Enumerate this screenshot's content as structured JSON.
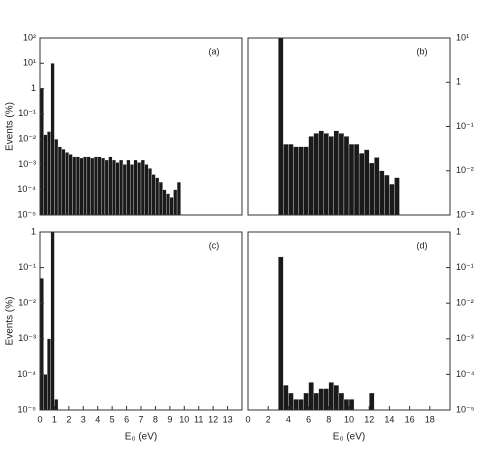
{
  "chart_data": [
    {
      "type": "histogram",
      "label": "(a)",
      "ylabel": "Events (%)",
      "color": "#1a1a1a",
      "log_y": true,
      "xlim": [
        0,
        14
      ],
      "ylim": [
        1e-05,
        100
      ],
      "yticks": [
        {
          "value": 100,
          "label": "10²"
        },
        {
          "value": 10,
          "label": "10¹"
        },
        1,
        {
          "value": 0.1,
          "label": "10⁻¹"
        },
        {
          "value": 0.01,
          "label": "10⁻²"
        },
        {
          "value": 0.001,
          "label": "10⁻³"
        },
        {
          "value": 0.0001,
          "label": "10⁻⁴"
        },
        {
          "value": 1e-05,
          "label": "10⁻⁵"
        }
      ],
      "bins": [
        0,
        0.25,
        0.5,
        0.75,
        1,
        1.25,
        1.5,
        1.75,
        2,
        2.25,
        2.5,
        2.75,
        3,
        3.25,
        3.5,
        3.75,
        4,
        4.25,
        4.5,
        4.75,
        5,
        5.25,
        5.5,
        5.75,
        6,
        6.25,
        6.5,
        6.75,
        7,
        7.25,
        7.5,
        7.75,
        8,
        8.25,
        8.5,
        8.75,
        9,
        9.25,
        9.5,
        9.75
      ],
      "values": [
        1,
        0.015,
        0.02,
        10,
        0.01,
        0.005,
        0.004,
        0.003,
        0.0025,
        0.002,
        0.002,
        0.0018,
        0.002,
        0.002,
        0.0018,
        0.002,
        0.002,
        0.0018,
        0.0015,
        0.002,
        0.0015,
        0.0012,
        0.0015,
        0.001,
        0.0015,
        0.001,
        0.0015,
        0.0012,
        0.0015,
        0.001,
        0.0007,
        0.0004,
        0.0003,
        0.0002,
        0.0001,
        7e-05,
        5e-05,
        0.0001,
        0.0002
      ]
    },
    {
      "type": "histogram",
      "label": "(b)",
      "color": "#1a1a1a",
      "log_y": true,
      "xlim": [
        0,
        20
      ],
      "ylim": [
        0.001,
        10
      ],
      "yticks": [
        {
          "value": 10,
          "label": "10¹"
        },
        1,
        {
          "value": 0.1,
          "label": "10⁻¹"
        },
        {
          "value": 0.01,
          "label": "10⁻²"
        },
        {
          "value": 0.001,
          "label": "10⁻³"
        }
      ],
      "bins": [
        3,
        3.5,
        4,
        4.5,
        5,
        5.5,
        6,
        6.5,
        7,
        7.5,
        8,
        8.5,
        9,
        9.5,
        10,
        10.5,
        11,
        11.5,
        12,
        12.5,
        13,
        13.5,
        14,
        14.5,
        15
      ],
      "values": [
        10,
        0.04,
        0.04,
        0.035,
        0.035,
        0.035,
        0.06,
        0.07,
        0.08,
        0.07,
        0.06,
        0.08,
        0.07,
        0.06,
        0.04,
        0.04,
        0.025,
        0.03,
        0.015,
        0.02,
        0.01,
        0.008,
        0.005,
        0.007
      ]
    },
    {
      "type": "histogram",
      "label": "(c)",
      "ylabel": "Events (%)",
      "xlabel": "E₀ (eV)",
      "color": "#1a1a1a",
      "log_y": true,
      "xlim": [
        0,
        14
      ],
      "ylim": [
        1e-05,
        1
      ],
      "xticks": [
        0,
        1,
        2,
        3,
        4,
        5,
        6,
        7,
        8,
        9,
        10,
        11,
        12,
        13
      ],
      "yticks": [
        1,
        {
          "value": 0.1,
          "label": "10⁻¹"
        },
        {
          "value": 0.01,
          "label": "10⁻²"
        },
        {
          "value": 0.001,
          "label": "10⁻³"
        },
        {
          "value": 0.0001,
          "label": "10⁻⁴"
        },
        {
          "value": 1e-05,
          "label": "10⁻⁵"
        }
      ],
      "bins": [
        0,
        0.25,
        0.5,
        0.75,
        1,
        1.25
      ],
      "values": [
        0.05,
        0.0001,
        0.001,
        1,
        2e-05
      ]
    },
    {
      "type": "histogram",
      "label": "(d)",
      "xlabel": "E₀ (eV)",
      "color": "#1a1a1a",
      "log_y": true,
      "xlim": [
        0,
        20
      ],
      "ylim": [
        1e-05,
        1
      ],
      "xticks": [
        0,
        2,
        4,
        6,
        8,
        10,
        12,
        14,
        16,
        18
      ],
      "yticks": [
        1,
        {
          "value": 0.1,
          "label": "10⁻¹"
        },
        {
          "value": 0.01,
          "label": "10⁻²"
        },
        {
          "value": 0.001,
          "label": "10⁻³"
        },
        {
          "value": 0.0001,
          "label": "10⁻⁴"
        },
        {
          "value": 1e-05,
          "label": "10⁻⁵"
        }
      ],
      "bins": [
        3,
        3.5,
        4,
        4.5,
        5,
        5.5,
        6,
        6.5,
        7,
        7.5,
        8,
        8.5,
        9,
        9.5,
        10,
        10.5,
        11,
        11.5,
        12,
        12.5
      ],
      "values": [
        0.2,
        5e-05,
        3e-05,
        2e-05,
        2e-05,
        3e-05,
        6e-05,
        3e-05,
        4e-05,
        4e-05,
        6e-05,
        5e-05,
        3e-05,
        2e-05,
        2e-05,
        1e-05,
        1e-05,
        1e-05,
        3e-05
      ]
    }
  ]
}
